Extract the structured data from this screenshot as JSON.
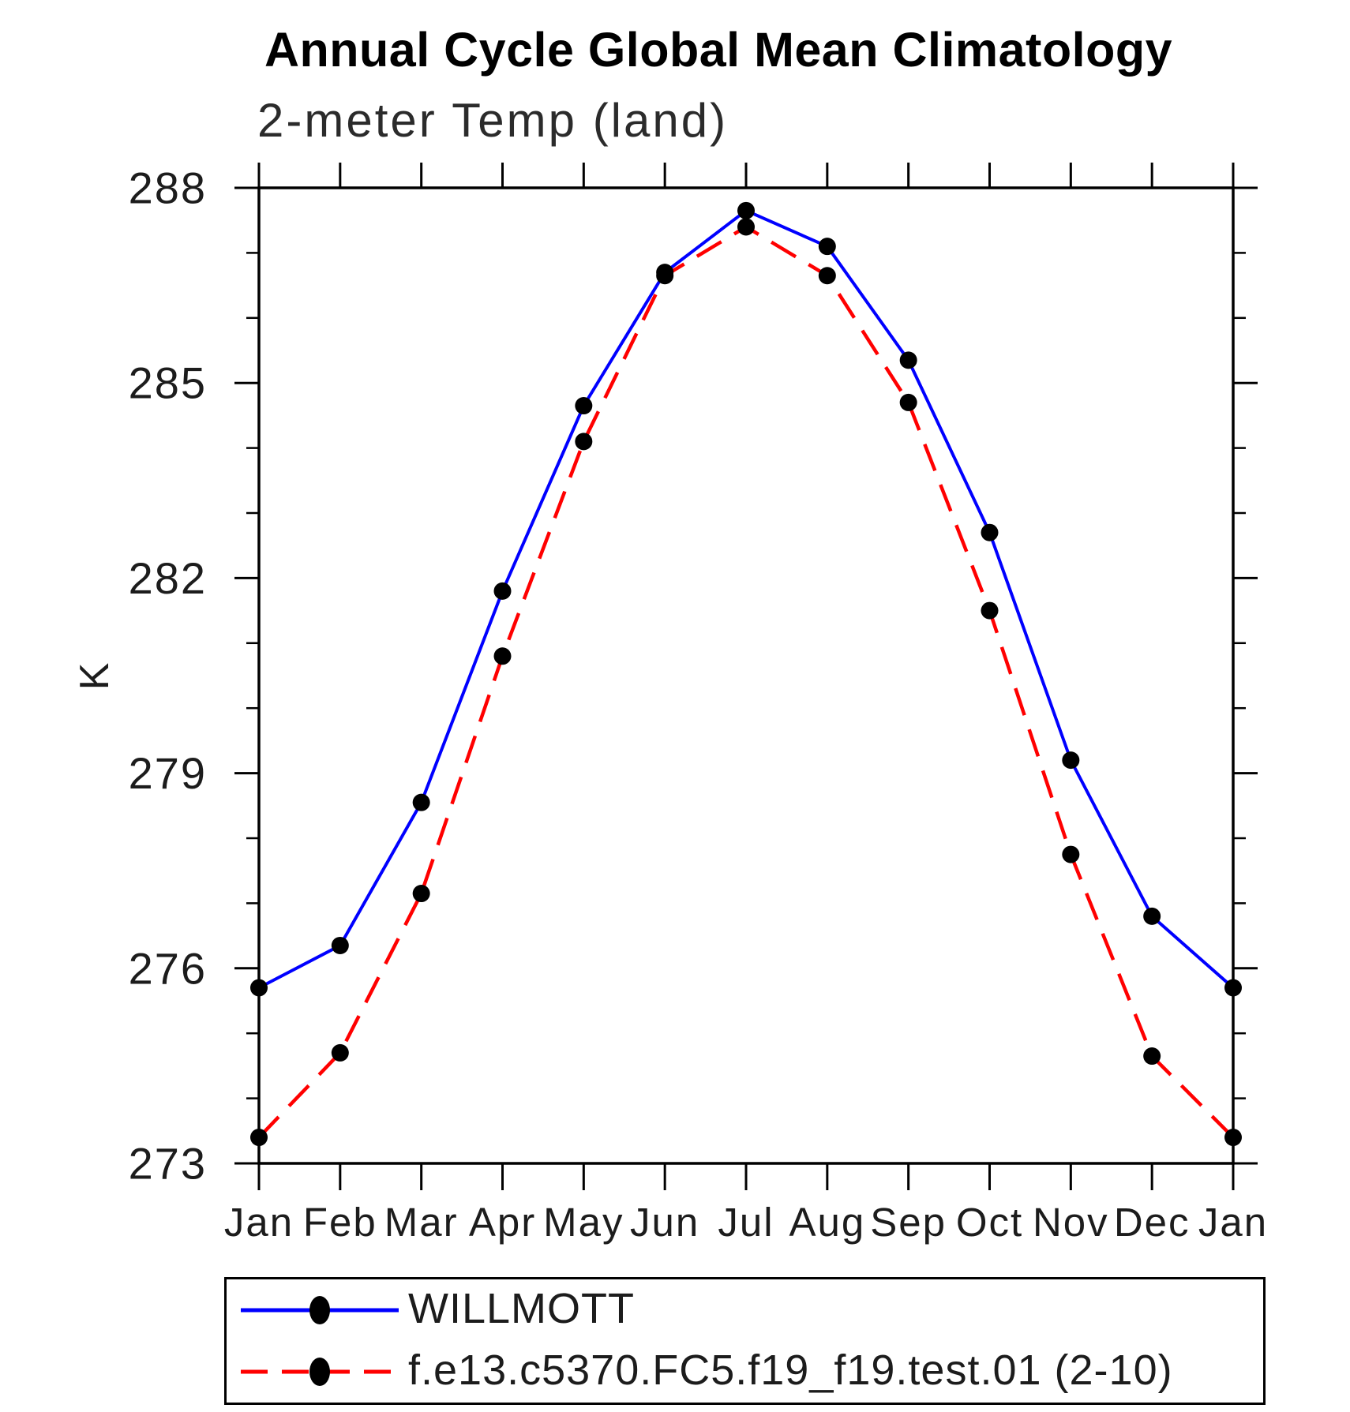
{
  "header": {
    "title": "Annual Cycle Global Mean Climatology",
    "subtitle": "2-meter Temp (land)"
  },
  "chart_data": {
    "type": "line",
    "title": "Annual Cycle Global Mean Climatology",
    "subtitle": "2-meter Temp (land)",
    "xlabel": "",
    "ylabel": "K",
    "categories": [
      "Jan",
      "Feb",
      "Mar",
      "Apr",
      "May",
      "Jun",
      "Jul",
      "Aug",
      "Sep",
      "Oct",
      "Nov",
      "Dec",
      "Jan"
    ],
    "ylim": [
      273,
      288
    ],
    "ytick_major": [
      273,
      276,
      279,
      282,
      285,
      288
    ],
    "ytick_minor_step": 1,
    "grid": false,
    "legend_position": "bottom-left-box",
    "series": [
      {
        "name": "WILLMOTT",
        "color": "#0000ff",
        "style": "solid",
        "marker": "filled-circle",
        "marker_color": "#000000",
        "values": [
          275.7,
          276.35,
          278.55,
          281.8,
          284.65,
          286.7,
          287.65,
          287.1,
          285.35,
          282.7,
          279.2,
          276.8,
          275.7
        ]
      },
      {
        "name": "f.e13.c5370.FC5.f19_f19.test.01 (2-10)",
        "color": "#ff0000",
        "style": "dashed",
        "marker": "filled-circle",
        "marker_color": "#000000",
        "values": [
          273.4,
          274.7,
          277.15,
          280.8,
          284.1,
          286.65,
          287.4,
          286.65,
          284.7,
          281.5,
          277.75,
          274.65,
          273.4
        ]
      }
    ]
  },
  "colors": {
    "axis": "#000000",
    "tick_label": "#1c1c1c",
    "series_blue": "#0000ff",
    "series_red": "#ff0000",
    "marker": "#000000"
  }
}
